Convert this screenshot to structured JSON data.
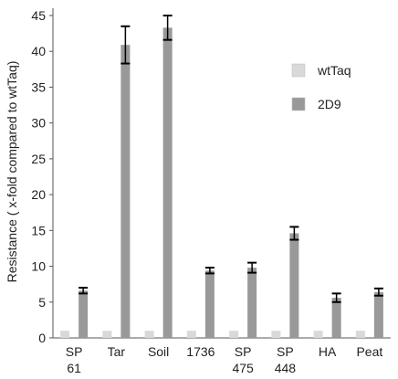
{
  "chart_data": {
    "type": "bar",
    "title": "",
    "xlabel": "",
    "ylabel": "Resistance ( x-fold compared to wtTaq)",
    "ylim": [
      0,
      45
    ],
    "yticks": [
      0,
      5,
      10,
      15,
      20,
      25,
      30,
      35,
      40,
      45
    ],
    "categories": [
      [
        "SP",
        "61"
      ],
      [
        "Tar"
      ],
      [
        "Soil"
      ],
      [
        "1736"
      ],
      [
        "SP",
        "475"
      ],
      [
        "SP",
        "448"
      ],
      [
        "HA"
      ],
      [
        "Peat"
      ]
    ],
    "series": [
      {
        "name": "wtTaq",
        "color": "#d9d9d9",
        "values": [
          1,
          1,
          1,
          1,
          1,
          1,
          1,
          1
        ],
        "errors": [
          0,
          0,
          0,
          0,
          0,
          0,
          0,
          0
        ]
      },
      {
        "name": "2D9",
        "color": "#999999",
        "values": [
          6.6,
          40.9,
          43.3,
          9.4,
          9.8,
          14.6,
          5.6,
          6.4
        ],
        "errors": [
          0.4,
          2.6,
          1.7,
          0.4,
          0.7,
          0.9,
          0.6,
          0.5
        ]
      }
    ],
    "legend_position": "top-right",
    "grid": false
  }
}
